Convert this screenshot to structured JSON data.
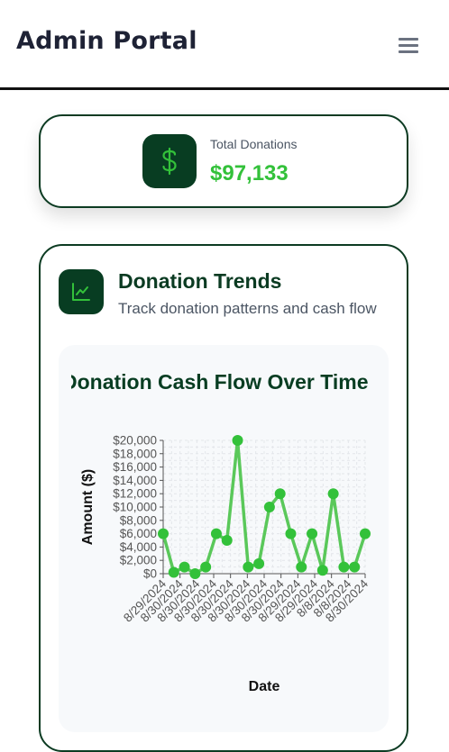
{
  "header": {
    "title": "Admin Portal",
    "menu_icon": "hamburger-menu-icon"
  },
  "stat": {
    "label": "Total Donations",
    "value": "$97,133",
    "icon": "dollar-icon"
  },
  "trends": {
    "title": "Donation Trends",
    "subtitle": "Track donation patterns and cash flow",
    "icon": "line-chart-icon"
  },
  "colors": {
    "brand_dark": "#083d22",
    "accent_green": "#33c13a",
    "line_green": "#5ac85a"
  },
  "chart_data": {
    "type": "line",
    "title": "Donation Cash Flow Over Time",
    "xlabel": "Date",
    "ylabel": "Amount ($)",
    "ylim": [
      0,
      20000
    ],
    "y_ticks": [
      "$0",
      "$2,000",
      "$4,000",
      "$6,000",
      "$8,000",
      "$10,000",
      "$12,000",
      "$14,000",
      "$16,000",
      "$18,000",
      "$20,000"
    ],
    "x_tick_labels": [
      "8/29/2024",
      "8/30/2024",
      "8/30/2024",
      "8/30/2024",
      "8/30/2024",
      "8/30/2024",
      "8/30/2024",
      "8/30/2024",
      "8/29/2024",
      "8/29/2024",
      "8/8/2024",
      "8/8/2024",
      "8/30/2024"
    ],
    "grid": true,
    "series": [
      {
        "values": [
          6000,
          200,
          1000,
          0,
          1000,
          6000,
          5000,
          20000,
          1000,
          1500,
          10000,
          12000,
          6000,
          1000,
          6000,
          500,
          12000,
          1000,
          1000,
          6000
        ]
      }
    ]
  }
}
